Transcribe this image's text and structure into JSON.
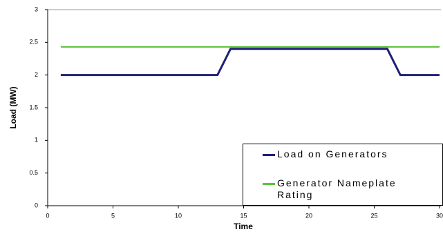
{
  "chart_data": {
    "type": "line",
    "x_label": "Time",
    "y_label": "Load (MW)",
    "x": [
      1,
      13,
      14,
      26,
      27,
      30
    ],
    "series": [
      {
        "name": "Load on Generators",
        "color": "#1f1f78",
        "values": [
          2,
          2,
          2.4,
          2.4,
          2,
          2
        ]
      },
      {
        "name": "Generator Nameplate Rating",
        "color": "#5cc43c",
        "values": [
          2.43,
          2.43,
          2.43,
          2.43,
          2.43,
          2.43
        ]
      }
    ],
    "xlim": [
      0,
      30
    ],
    "xticks": [
      0,
      5,
      10,
      15,
      20,
      25,
      30
    ],
    "ylim": [
      0,
      3
    ],
    "yticks": [
      0,
      0.5,
      1,
      1.5,
      2,
      2.5,
      3
    ],
    "grid": false
  }
}
